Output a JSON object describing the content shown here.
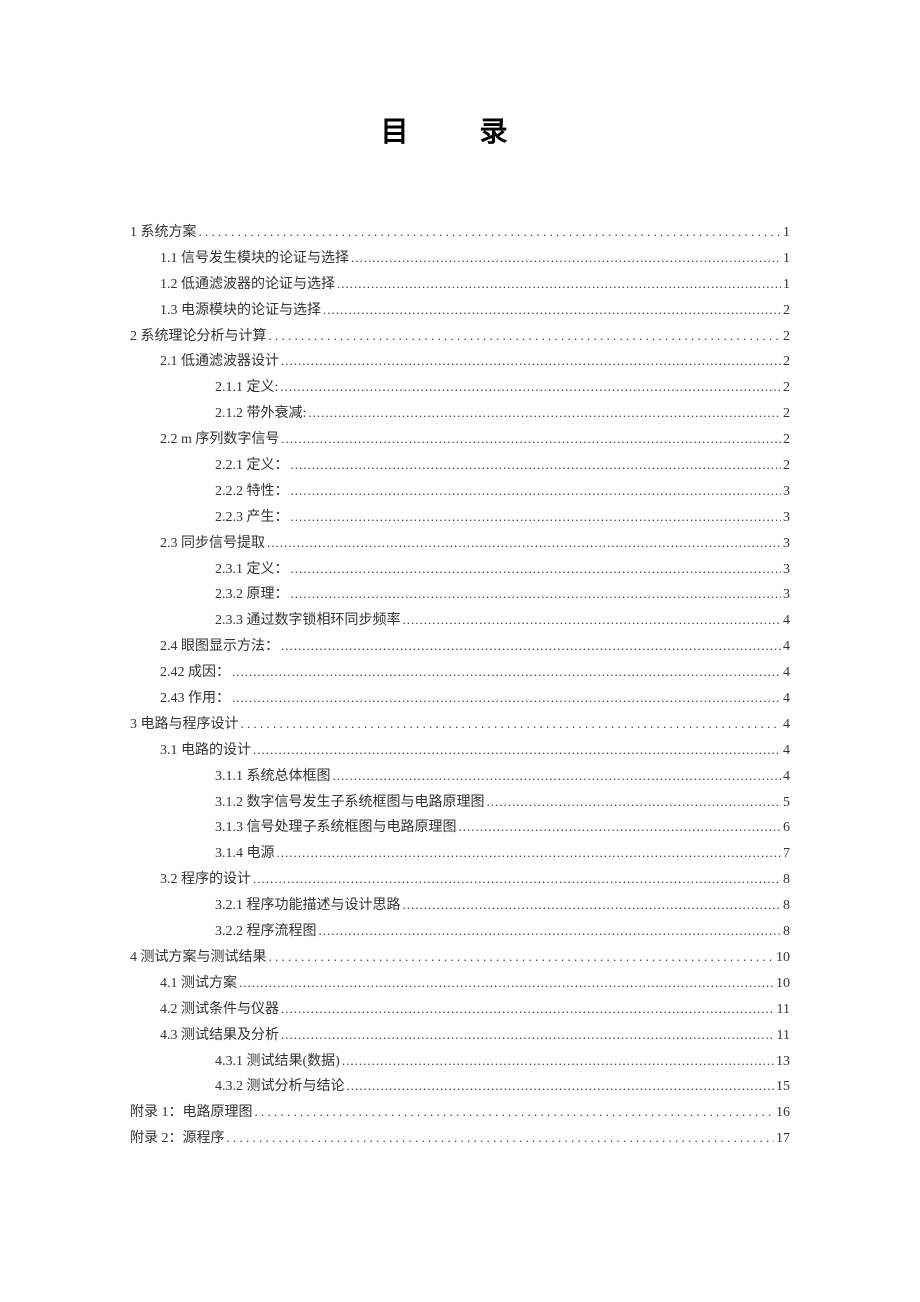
{
  "title": "目 录",
  "text_color": "#333333",
  "background_color": "#ffffff",
  "font_family": "SimSun",
  "entries": [
    {
      "level": 0,
      "label": "1 系统方案",
      "page": "1",
      "dot_style": "wide"
    },
    {
      "level": 1,
      "label": "1.1 信号发生模块的论证与选择",
      "page": "1",
      "dot_style": "dense"
    },
    {
      "level": 1,
      "label": "1.2 低通滤波器的论证与选择",
      "page": "1",
      "dot_style": "dense"
    },
    {
      "level": 1,
      "label": "1.3 电源模块的论证与选择",
      "page": "2",
      "dot_style": "dense"
    },
    {
      "level": 0,
      "label": "2 系统理论分析与计算",
      "page": "2",
      "dot_style": "wide"
    },
    {
      "level": 1,
      "label": "2.1   低通滤波器设计",
      "page": "2",
      "dot_style": "dense"
    },
    {
      "level": 2,
      "label": "2.1.1 定义:",
      "page": "2",
      "dot_style": "dense"
    },
    {
      "level": 2,
      "label": "2.1.2 带外衰减:",
      "page": "2",
      "dot_style": "dense"
    },
    {
      "level": 1,
      "label": "2.2 m 序列数字信号",
      "page": "2",
      "dot_style": "dense"
    },
    {
      "level": 2,
      "label": "2.2.1   定义：",
      "page": "2",
      "dot_style": "dense"
    },
    {
      "level": 2,
      "label": "2.2.2 特性：",
      "page": "3",
      "dot_style": "dense"
    },
    {
      "level": 2,
      "label": "2.2.3 产生：",
      "page": "3",
      "dot_style": "dense"
    },
    {
      "level": 1,
      "label": "2.3 同步信号提取",
      "page": "3",
      "dot_style": "dense"
    },
    {
      "level": 2,
      "label": "2.3.1 定义：",
      "page": "3",
      "dot_style": "dense"
    },
    {
      "level": 2,
      "label": "2.3.2 原理：",
      "page": "3",
      "dot_style": "dense"
    },
    {
      "level": 2,
      "label": "2.3.3 通过数字锁相环同步频率",
      "page": "4",
      "dot_style": "dense"
    },
    {
      "level": 1,
      "label": "2.4 眼图显示方法：",
      "page": "4",
      "dot_style": "dense"
    },
    {
      "level": 1,
      "label": "2.42 成因：",
      "page": "4",
      "dot_style": "dense"
    },
    {
      "level": 1,
      "label": "2.43 作用：",
      "page": "4",
      "dot_style": "dense"
    },
    {
      "level": 0,
      "label": "3 电路与程序设计",
      "page": "4",
      "dot_style": "wide"
    },
    {
      "level": 1,
      "label": "3.1 电路的设计",
      "page": "4",
      "dot_style": "dense"
    },
    {
      "level": 2,
      "label": "3.1.1 系统总体框图",
      "page": "4",
      "dot_style": "dense"
    },
    {
      "level": 2,
      "label": "3.1.2 数字信号发生子系统框图与电路原理图",
      "page": "5",
      "dot_style": "dense"
    },
    {
      "level": 2,
      "label": "3.1.3 信号处理子系统框图与电路原理图",
      "page": "6",
      "dot_style": "dense"
    },
    {
      "level": 2,
      "label": "3.1.4 电源",
      "page": "7",
      "dot_style": "dense"
    },
    {
      "level": 1,
      "label": "3.2 程序的设计",
      "page": "8",
      "dot_style": "dense"
    },
    {
      "level": 2,
      "label": "3.2.1 程序功能描述与设计思路",
      "page": "8",
      "dot_style": "dense"
    },
    {
      "level": 2,
      "label": "3.2.2 程序流程图",
      "page": "8",
      "dot_style": "dense"
    },
    {
      "level": 0,
      "label": "4 测试方案与测试结果",
      "page": "10",
      "dot_style": "wide"
    },
    {
      "level": 1,
      "label": "4.1 测试方案",
      "page": "10",
      "dot_style": "dense"
    },
    {
      "level": 1,
      "label": "4.2 测试条件与仪器",
      "page": "11",
      "dot_style": "dense"
    },
    {
      "level": 1,
      "label": "4.3 测试结果及分析",
      "page": "11",
      "dot_style": "dense"
    },
    {
      "level": 2,
      "label": "4.3.1 测试结果(数据)",
      "page": "13",
      "dot_style": "dense"
    },
    {
      "level": 2,
      "label": "4.3.2 测试分析与结论",
      "page": "15",
      "dot_style": "dense"
    },
    {
      "level": 0,
      "label": "附录 1：电路原理图",
      "page": "16",
      "dot_style": "wide"
    },
    {
      "level": 0,
      "label": "附录 2：源程序",
      "page": "17",
      "dot_style": "wide"
    }
  ]
}
